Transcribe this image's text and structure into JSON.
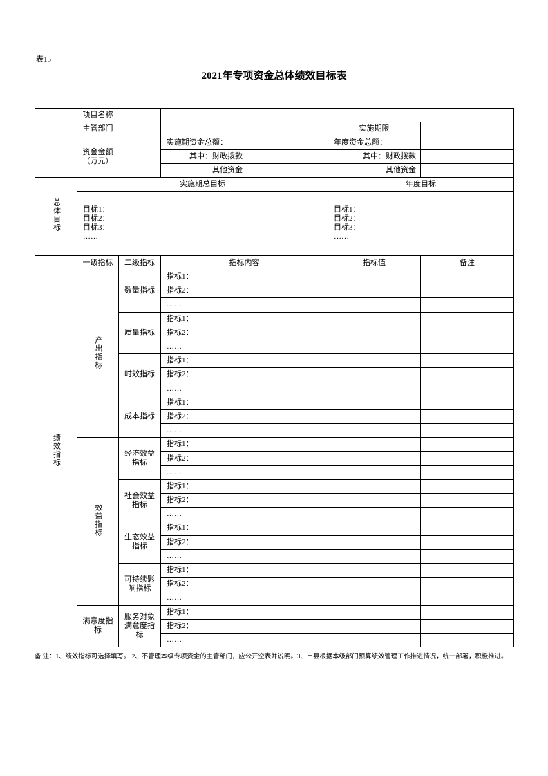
{
  "header": {
    "table_no": "表15",
    "title": "2021年专项资金总体绩效目标表"
  },
  "basic": {
    "project_name": "项目名称",
    "department": "主管部门",
    "period": "实施期限",
    "funds_label": [
      "资金金额",
      "（万元）"
    ],
    "funds_rows": [
      [
        "实施期资金总额：",
        "年度资金总额："
      ],
      [
        "其中：财政拨款",
        "其中：财政拨款"
      ],
      [
        "其他资金",
        "其他资金"
      ]
    ]
  },
  "overall": {
    "label": "总体目标",
    "period_goal": "实施期总目标",
    "annual_goal": "年度目标",
    "period_items": [
      "目标1：",
      "目标2：",
      "目标3：",
      "……"
    ],
    "annual_items": [
      "目标1：",
      "目标2：",
      "目标3：",
      "……"
    ]
  },
  "performance": {
    "label": "绩效指标",
    "headers": [
      "一级指标",
      "二级指标",
      "指标内容",
      "指标值",
      "备注"
    ],
    "groups": [
      {
        "name": "产出指标",
        "subgroups": [
          {
            "name": "数量指标",
            "items": [
              "指标1：",
              "指标2：",
              "……"
            ]
          },
          {
            "name": "质量指标",
            "items": [
              "指标1：",
              "指标2：",
              "……"
            ]
          },
          {
            "name": "时效指标",
            "items": [
              "指标1：",
              "指标2：",
              "……"
            ]
          },
          {
            "name": "成本指标",
            "items": [
              "指标1：",
              "指标2：",
              "……"
            ]
          }
        ]
      },
      {
        "name": "效益指标",
        "subgroups": [
          {
            "name": "经济效益指标",
            "items": [
              "指标1：",
              "指标2：",
              "……"
            ]
          },
          {
            "name": "社会效益指标",
            "items": [
              "指标1：",
              "指标2：",
              "……"
            ]
          },
          {
            "name": "生态效益指标",
            "items": [
              "指标1：",
              "指标2：",
              "……"
            ]
          },
          {
            "name": "可持续影响指标",
            "items": [
              "指标1：",
              "指标2：",
              "……"
            ]
          }
        ]
      },
      {
        "name": "满意度指标",
        "subgroups": [
          {
            "name": "服务对象满意度指标",
            "items": [
              "指标1：",
              "指标2：",
              "……"
            ]
          }
        ]
      }
    ]
  },
  "footnote": "备 注：1、绩效指标可选择填写。 2、不管理本级专项资金的主管部门，应公开空表并说明。3、市县根据本级部门预算绩效管理工作推进情况，统一部署，积极推进。"
}
